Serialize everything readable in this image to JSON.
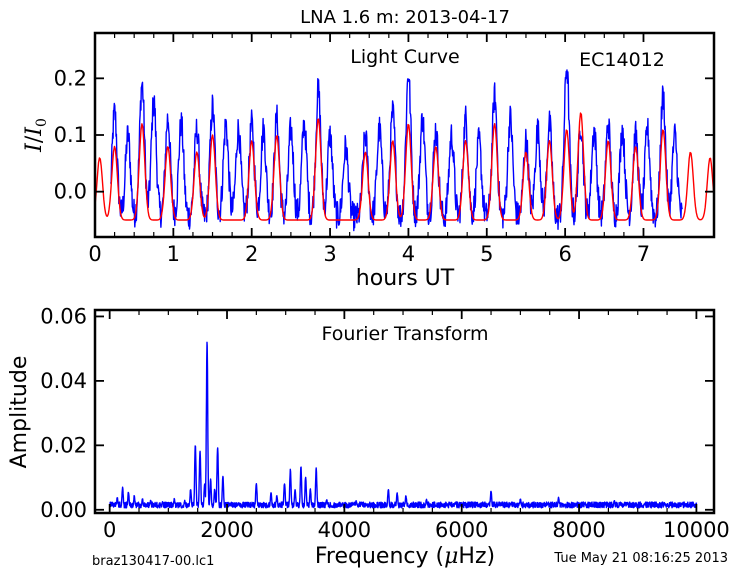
{
  "page_title": "LNA 1.6 m:  2013-04-17",
  "footer": {
    "left": "braz130417-00.lc1",
    "right": "Tue May 21 08:16:25 2013"
  },
  "colors": {
    "observed": "#0000ff",
    "fit": "#ff0000",
    "axis": "#000000"
  },
  "chart_data": [
    {
      "type": "line",
      "title": "Light Curve",
      "annotation": "EC14012",
      "xlabel": "hours UT",
      "ylabel_main": "I",
      "ylabel_denom": "I",
      "ylabel_sub": "0",
      "xlim": [
        0,
        7.9
      ],
      "ylim": [
        -0.08,
        0.28
      ],
      "xticks": [
        0,
        1,
        2,
        3,
        4,
        5,
        6,
        7
      ],
      "xtick_labels": [
        "0",
        "1",
        "2",
        "3",
        "4",
        "5",
        "6",
        "7"
      ],
      "yticks": [
        0.0,
        0.1,
        0.2
      ],
      "ytick_labels": [
        "0.0",
        "0.1",
        "0.2"
      ],
      "grid": false,
      "series": [
        {
          "role": "observed",
          "x_range": [
            0.2,
            7.5
          ],
          "peaks": [
            [
              0.25,
              0.14
            ],
            [
              0.42,
              0.1
            ],
            [
              0.6,
              0.19
            ],
            [
              0.75,
              0.16
            ],
            [
              0.93,
              0.13
            ],
            [
              1.1,
              0.12
            ],
            [
              1.3,
              0.11
            ],
            [
              1.5,
              0.15
            ],
            [
              1.67,
              0.12
            ],
            [
              1.83,
              0.11
            ],
            [
              2.0,
              0.12
            ],
            [
              2.15,
              0.11
            ],
            [
              2.32,
              0.13
            ],
            [
              2.5,
              0.11
            ],
            [
              2.67,
              0.12
            ],
            [
              2.85,
              0.18
            ],
            [
              3.0,
              0.1
            ],
            [
              3.2,
              0.08
            ],
            [
              3.45,
              0.1
            ],
            [
              3.63,
              0.11
            ],
            [
              3.8,
              0.14
            ],
            [
              4.0,
              0.21
            ],
            [
              4.18,
              0.13
            ],
            [
              4.35,
              0.11
            ],
            [
              4.55,
              0.1
            ],
            [
              4.73,
              0.13
            ],
            [
              4.9,
              0.09
            ],
            [
              5.1,
              0.17
            ],
            [
              5.3,
              0.13
            ],
            [
              5.5,
              0.09
            ],
            [
              5.65,
              0.11
            ],
            [
              5.8,
              0.12
            ],
            [
              6.02,
              0.22
            ],
            [
              6.2,
              0.12
            ],
            [
              6.37,
              0.11
            ],
            [
              6.55,
              0.12
            ],
            [
              6.73,
              0.11
            ],
            [
              6.9,
              0.1
            ],
            [
              7.05,
              0.11
            ],
            [
              7.25,
              0.17
            ],
            [
              7.4,
              0.1
            ]
          ]
        },
        {
          "role": "fit",
          "x_range": [
            0.0,
            7.9
          ],
          "peaks": [
            [
              0.06,
              0.06
            ],
            [
              0.25,
              0.08
            ],
            [
              0.6,
              0.12
            ],
            [
              0.93,
              0.08
            ],
            [
              1.3,
              0.07
            ],
            [
              1.5,
              0.1
            ],
            [
              2.0,
              0.09
            ],
            [
              2.32,
              0.1
            ],
            [
              2.85,
              0.13
            ],
            [
              3.45,
              0.07
            ],
            [
              3.8,
              0.09
            ],
            [
              4.0,
              0.12
            ],
            [
              4.35,
              0.08
            ],
            [
              4.73,
              0.09
            ],
            [
              5.1,
              0.12
            ],
            [
              5.5,
              0.07
            ],
            [
              5.8,
              0.09
            ],
            [
              6.02,
              0.11
            ],
            [
              6.2,
              0.14
            ],
            [
              6.55,
              0.09
            ],
            [
              6.9,
              0.08
            ],
            [
              7.25,
              0.11
            ],
            [
              7.6,
              0.07
            ],
            [
              7.85,
              0.06
            ]
          ]
        }
      ]
    },
    {
      "type": "line",
      "title": "Fourier Transform",
      "xlabel_main": "Frequency (",
      "xlabel_mu": "μ",
      "xlabel_unit": "Hz)",
      "ylabel": "Amplitude",
      "xlim": [
        -250,
        10300
      ],
      "ylim": [
        -0.001,
        0.062
      ],
      "xticks": [
        0,
        2000,
        4000,
        6000,
        8000,
        10000
      ],
      "xtick_labels": [
        "0",
        "2000",
        "4000",
        "6000",
        "8000",
        "10000"
      ],
      "yticks": [
        0.0,
        0.02,
        0.04,
        0.06
      ],
      "ytick_labels": [
        "0.00",
        "0.02",
        "0.04",
        "0.06"
      ],
      "grid": false,
      "series": [
        {
          "role": "observed",
          "x_range": [
            0,
            10000
          ],
          "peaks": [
            [
              130,
              0.0035
            ],
            [
              220,
              0.0065
            ],
            [
              320,
              0.005
            ],
            [
              420,
              0.004
            ],
            [
              560,
              0.003
            ],
            [
              700,
              0.0025
            ],
            [
              900,
              0.002
            ],
            [
              1100,
              0.003
            ],
            [
              1280,
              0.0025
            ],
            [
              1380,
              0.006
            ],
            [
              1460,
              0.02
            ],
            [
              1540,
              0.018
            ],
            [
              1620,
              0.008
            ],
            [
              1660,
              0.052
            ],
            [
              1720,
              0.009
            ],
            [
              1790,
              0.006
            ],
            [
              1840,
              0.019
            ],
            [
              1930,
              0.01
            ],
            [
              2200,
              0.002
            ],
            [
              2500,
              0.008
            ],
            [
              2750,
              0.005
            ],
            [
              2850,
              0.004
            ],
            [
              2980,
              0.008
            ],
            [
              3080,
              0.012
            ],
            [
              3160,
              0.006
            ],
            [
              3260,
              0.013
            ],
            [
              3340,
              0.01
            ],
            [
              3420,
              0.006
            ],
            [
              3520,
              0.0125
            ],
            [
              3700,
              0.003
            ],
            [
              4200,
              0.0025
            ],
            [
              4750,
              0.006
            ],
            [
              4900,
              0.005
            ],
            [
              5050,
              0.004
            ],
            [
              5400,
              0.003
            ],
            [
              5900,
              0.002
            ],
            [
              6500,
              0.0055
            ],
            [
              7000,
              0.003
            ],
            [
              7650,
              0.0035
            ],
            [
              8100,
              0.002
            ],
            [
              8600,
              0.0025
            ],
            [
              9200,
              0.002
            ],
            [
              9750,
              0.0015
            ]
          ]
        }
      ]
    }
  ]
}
